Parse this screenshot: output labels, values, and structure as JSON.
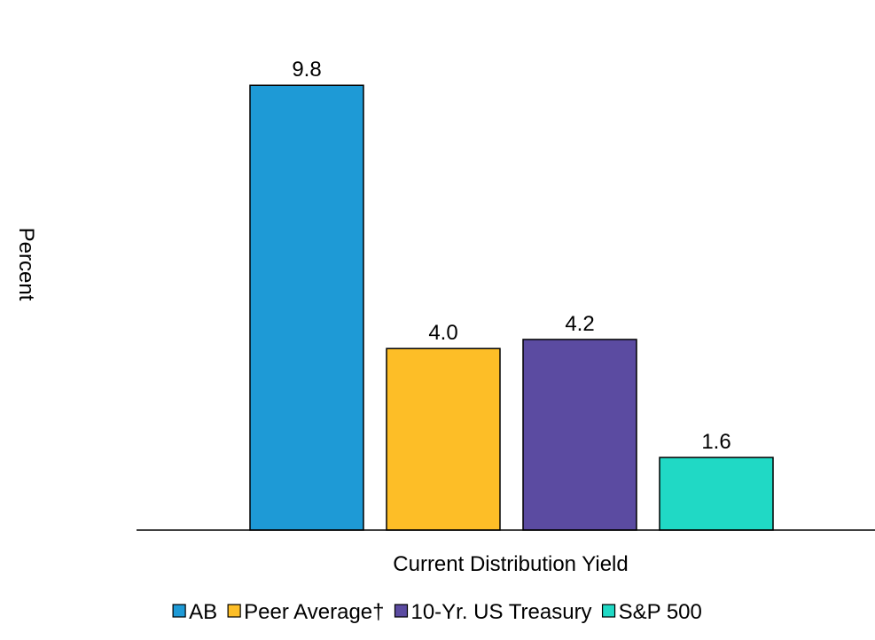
{
  "chart_data": {
    "type": "bar",
    "xlabel": "Current Distribution Yield",
    "ylabel": "Percent",
    "ylim": [
      0,
      10
    ],
    "grid": false,
    "legend_position": "bottom",
    "categories": [
      "Current Distribution Yield"
    ],
    "series": [
      {
        "name": "AB",
        "values": [
          9.8
        ],
        "label": "9.8",
        "color": "#1E9AD6"
      },
      {
        "name": "Peer Average†",
        "values": [
          4.0
        ],
        "label": "4.0",
        "color": "#FDBE27"
      },
      {
        "name": "10-Yr. US Treasury",
        "values": [
          4.2
        ],
        "label": "4.2",
        "color": "#5B4BA1"
      },
      {
        "name": "S&P 500",
        "values": [
          1.6
        ],
        "label": "1.6",
        "color": "#20D9C5"
      }
    ]
  }
}
